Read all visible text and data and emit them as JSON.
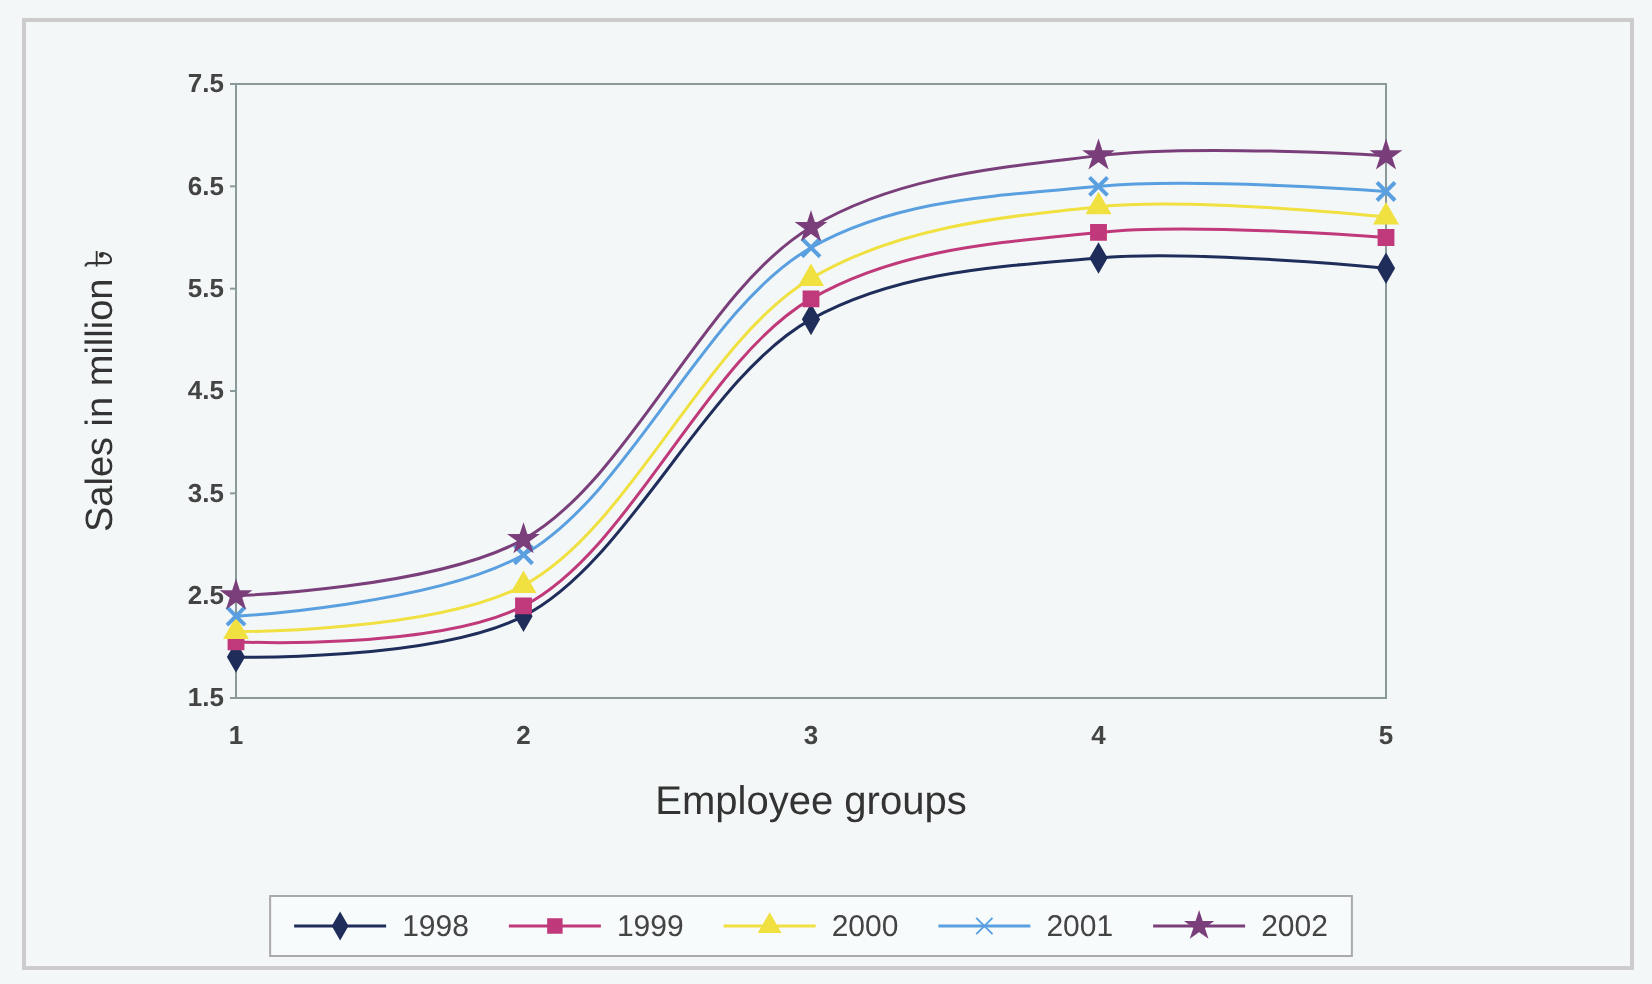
{
  "chart_data": {
    "type": "line",
    "xlabel": "Employee groups",
    "ylabel": "Sales in million ৳",
    "x": [
      1,
      2,
      3,
      4,
      5
    ],
    "xlim": [
      1,
      5
    ],
    "xticks": [
      1,
      2,
      3,
      4,
      5
    ],
    "ylim": [
      1.5,
      7.5
    ],
    "yticks": [
      1.5,
      2.5,
      3.5,
      4.5,
      5.5,
      6.5,
      7.5
    ],
    "grid": false,
    "legend": "bottom",
    "line_style": "solid",
    "series": [
      {
        "name": "1998",
        "color": "#1f2d5a",
        "marker": "diamond",
        "values": [
          1.9,
          2.3,
          5.2,
          5.8,
          5.7
        ]
      },
      {
        "name": "1999",
        "color": "#c0397a",
        "marker": "square",
        "values": [
          2.05,
          2.4,
          5.4,
          6.05,
          6.0
        ]
      },
      {
        "name": "2000",
        "color": "#f0e040",
        "marker": "triangle",
        "values": [
          2.15,
          2.6,
          5.6,
          6.3,
          6.2
        ]
      },
      {
        "name": "2001",
        "color": "#5aa0e0",
        "marker": "cross",
        "values": [
          2.3,
          2.9,
          5.9,
          6.5,
          6.45
        ]
      },
      {
        "name": "2002",
        "color": "#7a3f7a",
        "marker": "star",
        "values": [
          2.5,
          3.05,
          6.1,
          6.8,
          6.8
        ]
      }
    ]
  }
}
